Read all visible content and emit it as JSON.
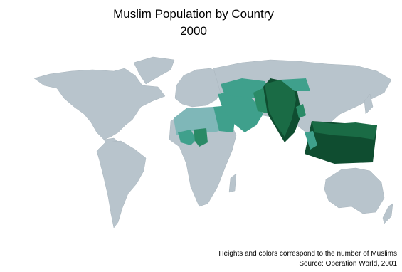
{
  "title": {
    "line1": "Muslim Population by Country",
    "line2": "2000"
  },
  "notes": {
    "line1": "Heights and colors correspond to the number of Muslims",
    "line2": "Source:  Operation World, 2001"
  }
}
